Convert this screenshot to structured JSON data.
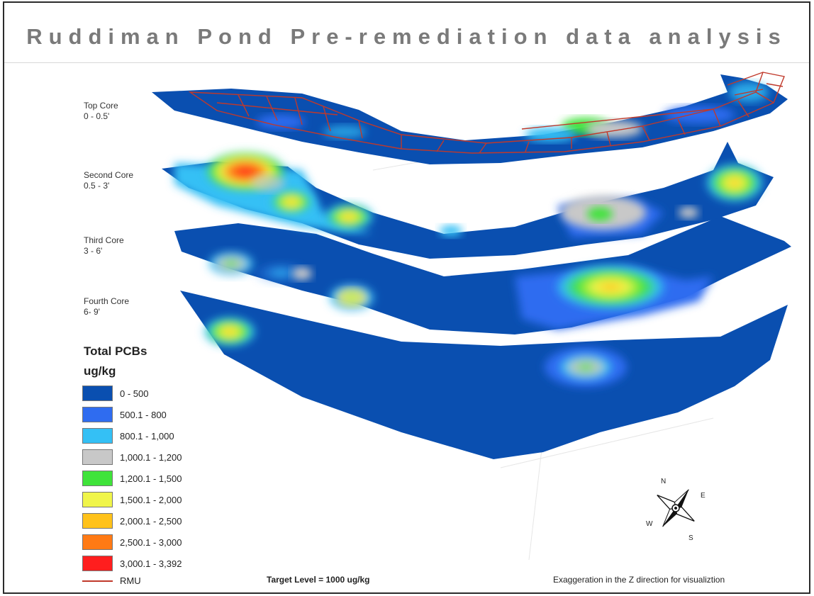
{
  "title": "Ruddiman Pond Pre-remediation data analysis",
  "cores": [
    {
      "name": "Top Core",
      "depth": "0 - 0.5'"
    },
    {
      "name": "Second Core",
      "depth": "0.5 - 3'"
    },
    {
      "name": "Third Core",
      "depth": "3 - 6'"
    },
    {
      "name": "Fourth Core",
      "depth": "6- 9'"
    }
  ],
  "legend": {
    "title": "Total PCBs",
    "units": "ug/kg",
    "classes": [
      {
        "label": "0 - 500",
        "color": "#0a4fb0"
      },
      {
        "label": "500.1 - 800",
        "color": "#2f6cf0"
      },
      {
        "label": "800.1 - 1,000",
        "color": "#34c0f5"
      },
      {
        "label": "1,000.1 - 1,200",
        "color": "#c8c8c8"
      },
      {
        "label": "1,200.1 - 1,500",
        "color": "#3fe33a"
      },
      {
        "label": "1,500.1 - 2,000",
        "color": "#f0f54a"
      },
      {
        "label": "2,000.1 - 2,500",
        "color": "#ffc21a"
      },
      {
        "label": "2,500.1 - 3,000",
        "color": "#ff7a14"
      },
      {
        "label": "3,000.1 - 3,392",
        "color": "#ff1e1e"
      }
    ],
    "rmu_label": "RMU",
    "rmu_color": "#c0392b"
  },
  "target_level": "Target Level = 1000 ug/kg",
  "exaggeration_note": "Exaggeration in the Z direction for visualiztion",
  "compass": {
    "n": "N",
    "e": "E",
    "s": "S",
    "w": "W"
  }
}
